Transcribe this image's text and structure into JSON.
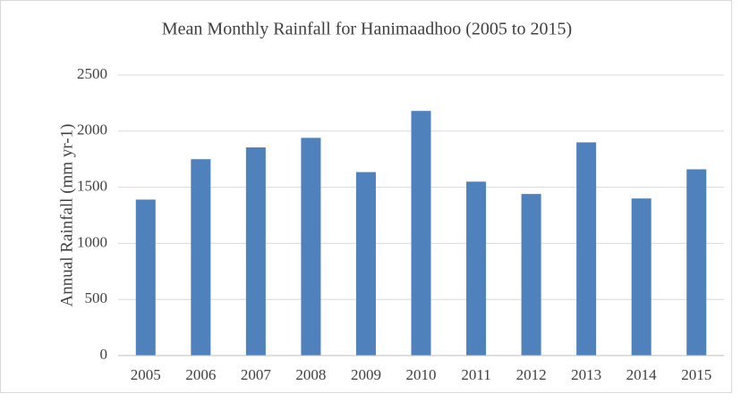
{
  "chart_data": {
    "type": "bar",
    "title": "Mean Monthly Rainfall for Hanimaadhoo (2005 to 2015)",
    "y_label": "Annual Rainfall (mm yr-1)",
    "categories": [
      "2005",
      "2006",
      "2007",
      "2008",
      "2009",
      "2010",
      "2011",
      "2012",
      "2013",
      "2014",
      "2015"
    ],
    "values": [
      1390,
      1750,
      1855,
      1940,
      1635,
      2180,
      1550,
      1440,
      1900,
      1400,
      1660
    ],
    "color": "#4f81bd",
    "ylim": [
      0,
      2500
    ],
    "yticks": [
      0,
      500,
      1000,
      1500,
      2000,
      2500
    ],
    "grid": true
  }
}
